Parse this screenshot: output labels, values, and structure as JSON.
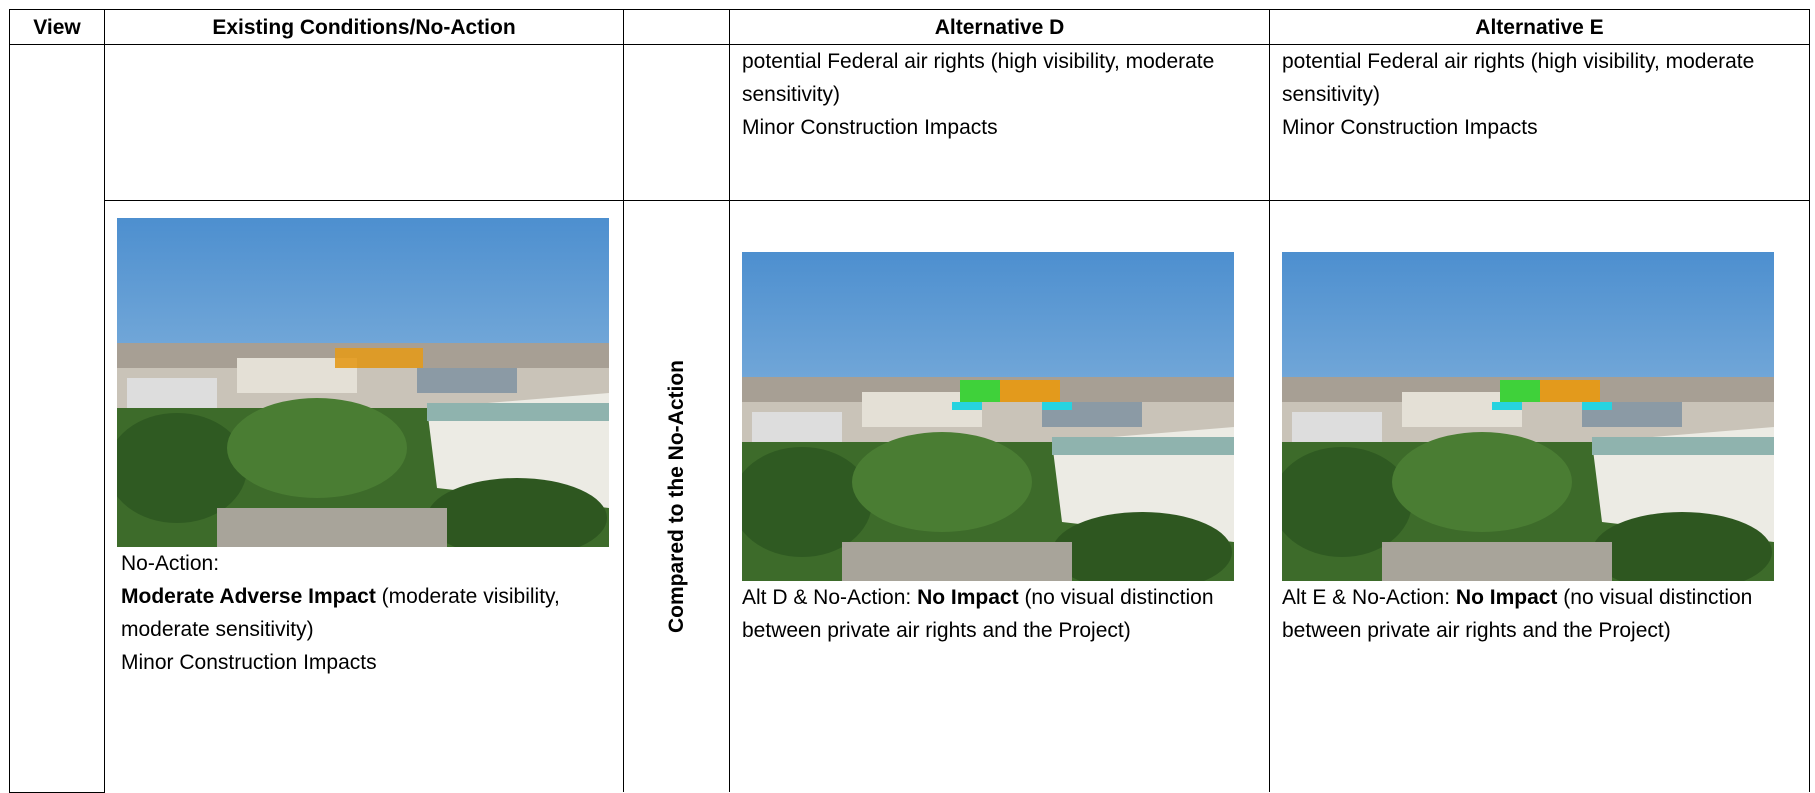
{
  "header": {
    "view": "View",
    "existing": "Existing Conditions/No-Action",
    "alt_d": "Alternative D",
    "alt_e": "Alternative E"
  },
  "rows": [
    {
      "alt_d": [
        "potential Federal air rights (high visibility, moderate sensitivity)",
        "Minor Construction Impacts"
      ],
      "alt_e": [
        "potential Federal air rights (high visibility, moderate sensitivity)",
        "Minor Construction Impacts"
      ]
    },
    {
      "existing": {
        "label": "No-Action:",
        "impact": "Moderate Adverse Impact",
        "note": "(moderate visibility, moderate sensitivity)",
        "construction": "Minor Construction Impacts"
      },
      "comparison_label": "Compared to the No-Action",
      "alt_d": {
        "prefix": "Alt D & No-Action:",
        "impact": "No Impact",
        "note": "(no visual distinction between private air rights and the Project)"
      },
      "alt_e": {
        "prefix": "Alt E & No-Action:",
        "impact": "No Impact",
        "note": "(no visual distinction between private air rights and the Project)"
      }
    }
  ]
}
